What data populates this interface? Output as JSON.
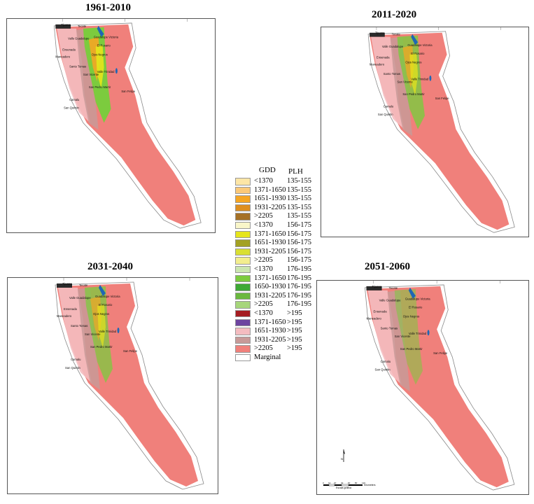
{
  "panels": [
    {
      "title": "1961-2010",
      "period": "1961-2010"
    },
    {
      "title": "2011-2020",
      "period": "2011-2020"
    },
    {
      "title": "2031-2040",
      "period": "2031-2040"
    },
    {
      "title": "2051-2060",
      "period": "2051-2060"
    }
  ],
  "places": [
    "Tijuana",
    "Tecate",
    "Valle Guadalupe",
    "Guadalupe Victoria",
    "El Rosario",
    "Ensenada",
    "Ojos Negros",
    "Maneadero",
    "Santo Tomas",
    "San Vicente",
    "Valle Trinidad",
    "San Pedro Martir",
    "San Felipe",
    "Camalu",
    "San Quintin"
  ],
  "legend": {
    "header_gdd": "GDD",
    "header_plh": "PLH",
    "rows": [
      {
        "gdd": "<1370",
        "plh": "135-155",
        "color": "#fde6a6"
      },
      {
        "gdd": "1371-1650",
        "plh": "135-155",
        "color": "#fbc979"
      },
      {
        "gdd": "1651-1930",
        "plh": "135-155",
        "color": "#f5a623"
      },
      {
        "gdd": "1931-2205",
        "plh": "135-155",
        "color": "#de8f1f"
      },
      {
        "gdd": ">2205",
        "plh": "135-155",
        "color": "#a57127"
      },
      {
        "gdd": "<1370",
        "plh": "156-175",
        "color": "#f9f6c9"
      },
      {
        "gdd": "1371-1650",
        "plh": "156-175",
        "color": "#e6e51b"
      },
      {
        "gdd": "1651-1930",
        "plh": "156-175",
        "color": "#a3a123"
      },
      {
        "gdd": "1931-2205",
        "plh": "156-175",
        "color": "#d9df33"
      },
      {
        "gdd": ">2205",
        "plh": "156-175",
        "color": "#f3ee8e"
      },
      {
        "gdd": "<1370",
        "plh": "176-195",
        "color": "#cbe6b0"
      },
      {
        "gdd": "1371-1650",
        "plh": "176-195",
        "color": "#7ccb3e"
      },
      {
        "gdd": "1650-1930",
        "plh": "176-195",
        "color": "#3ea935"
      },
      {
        "gdd": "1931-2205",
        "plh": "176-195",
        "color": "#6ab83e"
      },
      {
        "gdd": ">2205",
        "plh": "176-195",
        "color": "#a6d67a"
      },
      {
        "gdd": "<1370",
        "plh": ">195",
        "color": "#a51d22"
      },
      {
        "gdd": "1371-1650",
        "plh": ">195",
        "color": "#6d44a0"
      },
      {
        "gdd": "1651-1930",
        "plh": ">195",
        "color": "#f4bcc0"
      },
      {
        "gdd": "1931-2205",
        "plh": ">195",
        "color": "#c89a98"
      },
      {
        "gdd": ">2205",
        "plh": ">195",
        "color": "#f0807b"
      },
      {
        "gdd": "Marginal",
        "plh": "",
        "color": "#ffffff"
      }
    ]
  },
  "scale": {
    "label": "Escala gráfica",
    "unit": "Kilometers",
    "ticks": [
      "0",
      "10",
      "20",
      "40",
      "60",
      "80",
      "120"
    ]
  },
  "north_label": "N",
  "colors": {
    "land_pink": "#f0807b",
    "pale_pink": "#f4bcc0",
    "mauve": "#c89a98",
    "green": "#7ccb3e",
    "orange": "#f5a623",
    "yellow": "#e6e51b",
    "water": "#1f66b5",
    "dark_urban": "#2a2a2a",
    "outline": "#888888"
  }
}
